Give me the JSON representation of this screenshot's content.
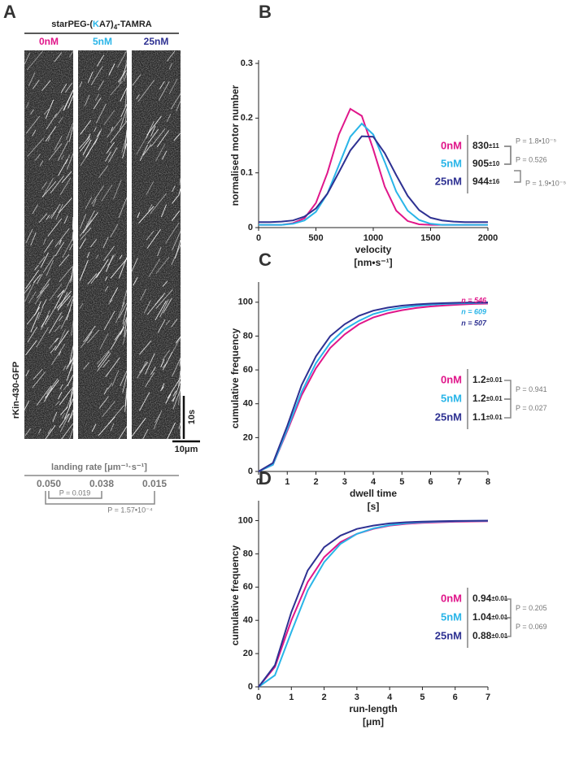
{
  "panel_a": {
    "letter": "A",
    "title": {
      "pre": "starPEG-(",
      "k": "K",
      "mid": "A7)",
      "sub": "4",
      "post": "-TAMRA"
    },
    "conditions": [
      "0nM",
      "5nM",
      "25nM"
    ],
    "protein": "rKin-430-GFP",
    "time_scale": "10s",
    "length_scale": "10μm",
    "landing_title": "landing rate [μm⁻¹·s⁻¹]",
    "landing_values": [
      "0.050",
      "0.038",
      "0.015"
    ],
    "p_values": [
      "P = 0.019",
      "P = 1.57•10⁻⁴"
    ]
  },
  "chart_data": [
    {
      "type": "line",
      "letter": "B",
      "ylabel": "normalised motor number",
      "xlabel": "velocity",
      "xunit": "[nm•s⁻¹]",
      "x": [
        0,
        100,
        200,
        300,
        400,
        500,
        600,
        700,
        800,
        900,
        1000,
        1100,
        1200,
        1300,
        1400,
        1500,
        1600,
        1700,
        1800,
        1900,
        2000
      ],
      "series": [
        {
          "name": "0nM",
          "color": "#e0168a",
          "values": [
            0.005,
            0.005,
            0.005,
            0.008,
            0.017,
            0.045,
            0.1,
            0.17,
            0.217,
            0.204,
            0.143,
            0.075,
            0.031,
            0.012,
            0.006,
            0.005,
            0.005,
            0.005,
            0.005,
            0.005,
            0.005
          ]
        },
        {
          "name": "5nM",
          "color": "#29b5e8",
          "values": [
            0.005,
            0.005,
            0.005,
            0.007,
            0.013,
            0.029,
            0.062,
            0.114,
            0.166,
            0.19,
            0.17,
            0.12,
            0.066,
            0.031,
            0.014,
            0.007,
            0.005,
            0.005,
            0.005,
            0.005,
            0.005
          ]
        },
        {
          "name": "25nM",
          "color": "#2e3192",
          "values": [
            0.01,
            0.01,
            0.011,
            0.013,
            0.02,
            0.035,
            0.062,
            0.101,
            0.141,
            0.167,
            0.166,
            0.136,
            0.096,
            0.058,
            0.032,
            0.018,
            0.013,
            0.011,
            0.01,
            0.01,
            0.01
          ]
        }
      ],
      "xlim": [
        0,
        2000
      ],
      "xticks": [
        0,
        500,
        1000,
        1500,
        2000
      ],
      "ylim": [
        0,
        0.3
      ],
      "yticks": [
        0,
        0.1,
        0.2,
        0.3
      ],
      "stats": {
        "rows": [
          {
            "mean": "830",
            "sem": "±11"
          },
          {
            "mean": "905",
            "sem": "±10"
          },
          {
            "mean": "944",
            "sem": "±16"
          }
        ],
        "p_values": [
          "P = 1.8•10⁻⁵",
          "P = 0.526",
          "P = 1.9•10⁻⁵"
        ]
      }
    },
    {
      "type": "line",
      "letter": "C",
      "ylabel": "cumulative frequency",
      "xlabel": "dwell time",
      "xunit": "[s]",
      "x": [
        0,
        0.5,
        1,
        1.5,
        2,
        2.5,
        3,
        3.5,
        4,
        4.5,
        5,
        5.5,
        6,
        6.5,
        7,
        7.5,
        8
      ],
      "series": [
        {
          "name": "0nM",
          "color": "#e0168a",
          "values": [
            0,
            4,
            24,
            45,
            61,
            73,
            81,
            87,
            91,
            93.5,
            95.3,
            96.6,
            97.5,
            98.1,
            98.6,
            99,
            99.2
          ]
        },
        {
          "name": "5nM",
          "color": "#29b5e8",
          "values": [
            0,
            4,
            25,
            47,
            64,
            76,
            84,
            89,
            93,
            95.3,
            96.8,
            97.8,
            98.5,
            99,
            99.3,
            99.5,
            99.7
          ]
        },
        {
          "name": "25nM",
          "color": "#2e3192",
          "values": [
            0,
            5,
            27,
            51,
            68,
            80,
            87,
            92,
            95,
            96.8,
            98,
            98.7,
            99.2,
            99.5,
            99.7,
            99.8,
            99.9
          ]
        }
      ],
      "xlim": [
        0,
        8
      ],
      "xticks": [
        0,
        1,
        2,
        3,
        4,
        5,
        6,
        7,
        8
      ],
      "ylim": [
        0,
        110
      ],
      "yticks": [
        0,
        20,
        40,
        60,
        80,
        100
      ],
      "n_labels": [
        "n = 546",
        "n = 609",
        "n = 507"
      ],
      "stats": {
        "rows": [
          {
            "mean": "1.2",
            "sem": "±0.01"
          },
          {
            "mean": "1.2",
            "sem": "±0.01"
          },
          {
            "mean": "1.1",
            "sem": "±0.01"
          }
        ],
        "p_values": [
          "P = 0.941",
          "P = 0.027"
        ]
      }
    },
    {
      "type": "line",
      "letter": "D",
      "ylabel": "cumulative frequency",
      "xlabel": "run-length",
      "xunit": "[μm]",
      "x": [
        0,
        0.5,
        1,
        1.5,
        2,
        2.5,
        3,
        3.5,
        4,
        4.5,
        5,
        5.5,
        6,
        6.5,
        7
      ],
      "series": [
        {
          "name": "0nM",
          "color": "#e0168a",
          "values": [
            0,
            12,
            40,
            63,
            78,
            87,
            92,
            95,
            97,
            98,
            98.6,
            99,
            99.3,
            99.5,
            99.6
          ]
        },
        {
          "name": "5nM",
          "color": "#29b5e8",
          "values": [
            0,
            7,
            33,
            58,
            75,
            86,
            92,
            95.3,
            97.3,
            98.4,
            99,
            99.4,
            99.6,
            99.8,
            99.9
          ]
        },
        {
          "name": "25nM",
          "color": "#2e3192",
          "values": [
            0,
            13,
            45,
            70,
            84,
            91,
            95,
            97,
            98.3,
            99,
            99.4,
            99.6,
            99.8,
            99.9,
            100
          ]
        }
      ],
      "xlim": [
        0,
        7
      ],
      "xticks": [
        0,
        1,
        2,
        3,
        4,
        5,
        6,
        7
      ],
      "ylim": [
        0,
        110
      ],
      "yticks": [
        0,
        20,
        40,
        60,
        80,
        100
      ],
      "stats": {
        "rows": [
          {
            "mean": "0.94",
            "sem": "±0.01"
          },
          {
            "mean": "1.04",
            "sem": "±0.01"
          },
          {
            "mean": "0.88",
            "sem": "±0.01"
          }
        ],
        "p_values": [
          "P = 0.205",
          "P = 0.069"
        ]
      }
    }
  ]
}
